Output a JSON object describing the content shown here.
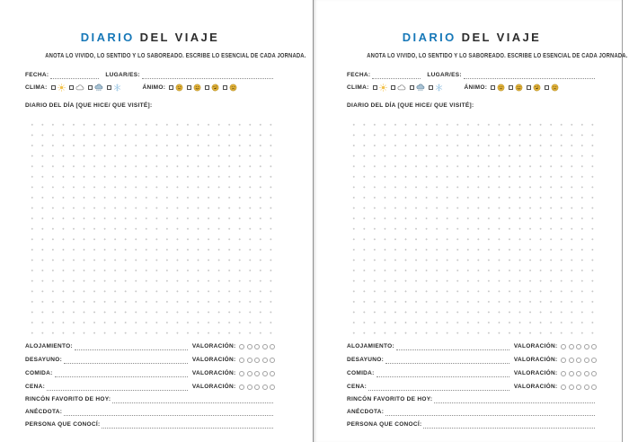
{
  "page": {
    "title_primary": "DIARIO",
    "title_secondary": " DEL VIAJE",
    "subtitle": "ANOTA LO VIVIDO, LO SENTIDO Y LO SABOREADO. ESCRIBE LO ESENCIAL DE CADA JORNADA.",
    "fecha_label": "FECHA:",
    "lugar_label": "LUGAR/ES:",
    "clima": {
      "label": "CLIMA:",
      "options": [
        {
          "icon": "sun-icon"
        },
        {
          "icon": "cloud-icon"
        },
        {
          "icon": "rain-cloud-icon"
        },
        {
          "icon": "snowflake-icon"
        }
      ]
    },
    "animo": {
      "label": "ÁNIMO:",
      "options": [
        {
          "icon": "neutral-face-icon"
        },
        {
          "icon": "smiling-face-icon"
        },
        {
          "icon": "laughing-face-icon"
        },
        {
          "icon": "sad-face-icon"
        }
      ]
    },
    "diary_label": "DIARIO DEL DÍA [QUE HICE/ QUE VISITÉ]:",
    "rating_rows": [
      {
        "label": "ALOJAMIENTO:",
        "rating_label": "VALORACIÓN:",
        "circles": 5
      },
      {
        "label": "DESAYUNO:",
        "rating_label": "VALORACIÓN:",
        "circles": 5
      },
      {
        "label": "COMIDA:",
        "rating_label": "VALORACIÓN:",
        "circles": 5
      },
      {
        "label": "CENA:",
        "rating_label": "VALORACIÓN:",
        "circles": 5
      }
    ],
    "line_rows": [
      {
        "label": "RINCÓN FAVORITO DE HOY:"
      },
      {
        "label": "ANÉCDOTA:"
      },
      {
        "label": "PERSONA QUE CONOCÍ:"
      }
    ],
    "colors": {
      "accent_blue": "#1778b8",
      "sun_yellow": "#f2c14b",
      "face_gold": "#e3b339",
      "snow_blue": "#9cc6e4",
      "rain_cloud_blue": "#a9c3d4"
    }
  }
}
